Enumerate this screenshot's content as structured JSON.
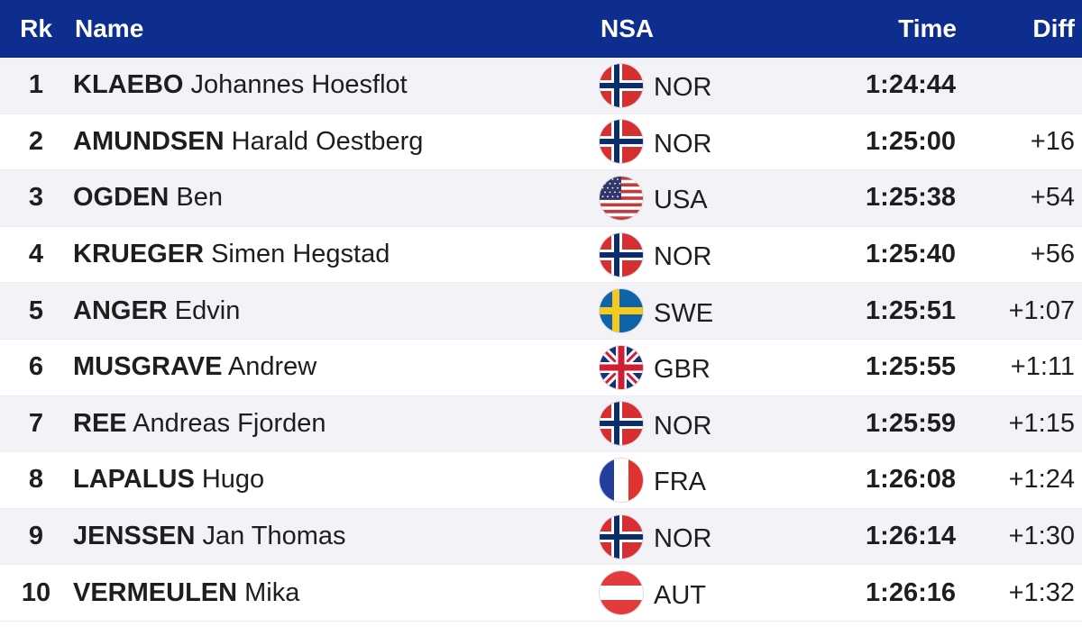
{
  "columns": {
    "rank": "Rk",
    "name": "Name",
    "nsa": "NSA",
    "time": "Time",
    "diff": "Diff"
  },
  "flag_colors": {
    "norway_red": "#d62f31",
    "norway_blue": "#0b2d6e",
    "usa_red": "#c43b3b",
    "usa_blue": "#31376b",
    "sweden_blue": "#0f63a8",
    "sweden_yellow": "#f7c81e",
    "gbr_blue": "#1b2f73",
    "gbr_red": "#cf1f37",
    "france_blue": "#233e9c",
    "france_red": "#e0322e",
    "austria_red": "#e33b3b"
  },
  "header_color": "#0d2e8f",
  "rows": [
    {
      "rank": "1",
      "surname": "KLAEBO",
      "given": "Johannes Hoesflot",
      "nsa": "NOR",
      "flag": "norway-flag-icon",
      "time": "1:24:44",
      "diff": ""
    },
    {
      "rank": "2",
      "surname": "AMUNDSEN",
      "given": "Harald Oestberg",
      "nsa": "NOR",
      "flag": "norway-flag-icon",
      "time": "1:25:00",
      "diff": "+16"
    },
    {
      "rank": "3",
      "surname": "OGDEN",
      "given": "Ben",
      "nsa": "USA",
      "flag": "usa-flag-icon",
      "time": "1:25:38",
      "diff": "+54"
    },
    {
      "rank": "4",
      "surname": "KRUEGER",
      "given": "Simen Hegstad",
      "nsa": "NOR",
      "flag": "norway-flag-icon",
      "time": "1:25:40",
      "diff": "+56"
    },
    {
      "rank": "5",
      "surname": "ANGER",
      "given": "Edvin",
      "nsa": "SWE",
      "flag": "sweden-flag-icon",
      "time": "1:25:51",
      "diff": "+1:07"
    },
    {
      "rank": "6",
      "surname": "MUSGRAVE",
      "given": "Andrew",
      "nsa": "GBR",
      "flag": "gbr-flag-icon",
      "time": "1:25:55",
      "diff": "+1:11"
    },
    {
      "rank": "7",
      "surname": "REE",
      "given": "Andreas Fjorden",
      "nsa": "NOR",
      "flag": "norway-flag-icon",
      "time": "1:25:59",
      "diff": "+1:15"
    },
    {
      "rank": "8",
      "surname": "LAPALUS",
      "given": "Hugo",
      "nsa": "FRA",
      "flag": "france-flag-icon",
      "time": "1:26:08",
      "diff": "+1:24"
    },
    {
      "rank": "9",
      "surname": "JENSSEN",
      "given": "Jan Thomas",
      "nsa": "NOR",
      "flag": "norway-flag-icon",
      "time": "1:26:14",
      "diff": "+1:30"
    },
    {
      "rank": "10",
      "surname": "VERMEULEN",
      "given": "Mika",
      "nsa": "AUT",
      "flag": "austria-flag-icon",
      "time": "1:26:16",
      "diff": "+1:32"
    }
  ]
}
